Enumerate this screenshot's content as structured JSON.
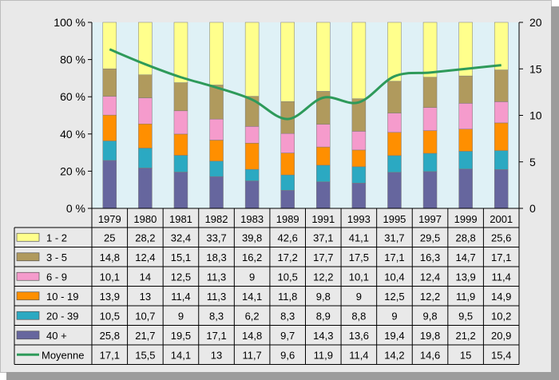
{
  "chart_data": {
    "type": "bar",
    "stacked": true,
    "stacked_percent": true,
    "categories": [
      "1979",
      "1980",
      "1981",
      "1982",
      "1983",
      "1989",
      "1991",
      "1993",
      "1995",
      "1997",
      "1999",
      "2001"
    ],
    "series": [
      {
        "name": "40 +",
        "color": "#66669e",
        "values": [
          25.8,
          21.7,
          19.5,
          17.1,
          14.8,
          9.7,
          14.3,
          13.6,
          19.4,
          19.8,
          21.2,
          20.9
        ]
      },
      {
        "name": "20 - 39",
        "color": "#2ba9c2",
        "values": [
          10.5,
          10.7,
          9,
          8.3,
          6.2,
          8.3,
          8.9,
          8.8,
          9,
          9.8,
          9.5,
          10.2
        ]
      },
      {
        "name": "10 - 19",
        "color": "#ff8f00",
        "values": [
          13.9,
          13,
          11.4,
          11.3,
          14.1,
          11.8,
          9.8,
          9,
          12.5,
          12.2,
          11.9,
          14.9
        ]
      },
      {
        "name": "6 - 9",
        "color": "#f59bcc",
        "values": [
          10.1,
          14,
          12.5,
          11.3,
          9,
          10.5,
          12.2,
          10.1,
          10.4,
          12.4,
          13.9,
          11.4
        ]
      },
      {
        "name": "3 - 5",
        "color": "#b09a5d",
        "values": [
          14.8,
          12.4,
          15.1,
          18.3,
          16.2,
          17.2,
          17.7,
          17.5,
          17.1,
          16.3,
          14.7,
          17.1
        ]
      },
      {
        "name": "1 - 2",
        "color": "#ffff8c",
        "values": [
          25,
          28.2,
          32.4,
          33.7,
          39.8,
          42.6,
          37.1,
          41.1,
          31.7,
          29.5,
          28.8,
          25.6
        ]
      }
    ],
    "line": {
      "name": "Moyenne",
      "color": "#2e9a5a",
      "axis": "right",
      "values": [
        17.1,
        15.5,
        14.1,
        13,
        11.7,
        9.6,
        11.9,
        11.4,
        14.2,
        14.6,
        15,
        15.4
      ]
    },
    "left_ticks": [
      "0 %",
      "20 %",
      "40 %",
      "60 %",
      "80 %",
      "100 %"
    ],
    "right_ticks": [
      "0",
      "5",
      "10",
      "15",
      "20"
    ],
    "ylim_left": [
      0,
      100
    ],
    "ylim_right": [
      0,
      20
    ],
    "table_rows": [
      {
        "label": "1 - 2",
        "series": "1 - 2",
        "cells": [
          "25",
          "28,2",
          "32,4",
          "33,7",
          "39,8",
          "42,6",
          "37,1",
          "41,1",
          "31,7",
          "29,5",
          "28,8",
          "25,6"
        ]
      },
      {
        "label": "3 - 5",
        "series": "3 - 5",
        "cells": [
          "14,8",
          "12,4",
          "15,1",
          "18,3",
          "16,2",
          "17,2",
          "17,7",
          "17,5",
          "17,1",
          "16,3",
          "14,7",
          "17,1"
        ]
      },
      {
        "label": "6 - 9",
        "series": "6 - 9",
        "cells": [
          "10,1",
          "14",
          "12,5",
          "11,3",
          "9",
          "10,5",
          "12,2",
          "10,1",
          "10,4",
          "12,4",
          "13,9",
          "11,4"
        ]
      },
      {
        "label": "10 - 19",
        "series": "10 - 19",
        "cells": [
          "13,9",
          "13",
          "11,4",
          "11,3",
          "14,1",
          "11,8",
          "9,8",
          "9",
          "12,5",
          "12,2",
          "11,9",
          "14,9"
        ]
      },
      {
        "label": "20 - 39",
        "series": "20 - 39",
        "cells": [
          "10,5",
          "10,7",
          "9",
          "8,3",
          "6,2",
          "8,3",
          "8,9",
          "8,8",
          "9",
          "9,8",
          "9,5",
          "10,2"
        ]
      },
      {
        "label": "40 +",
        "series": "40 +",
        "cells": [
          "25,8",
          "21,7",
          "19,5",
          "17,1",
          "14,8",
          "9,7",
          "14,3",
          "13,6",
          "19,4",
          "19,8",
          "21,2",
          "20,9"
        ]
      },
      {
        "label": "Moyenne",
        "series": "line",
        "cells": [
          "17,1",
          "15,5",
          "14,1",
          "13",
          "11,7",
          "9,6",
          "11,9",
          "11,4",
          "14,2",
          "14,6",
          "15",
          "15,4"
        ]
      }
    ],
    "plot_background": "#dff1f6",
    "grid": false
  }
}
